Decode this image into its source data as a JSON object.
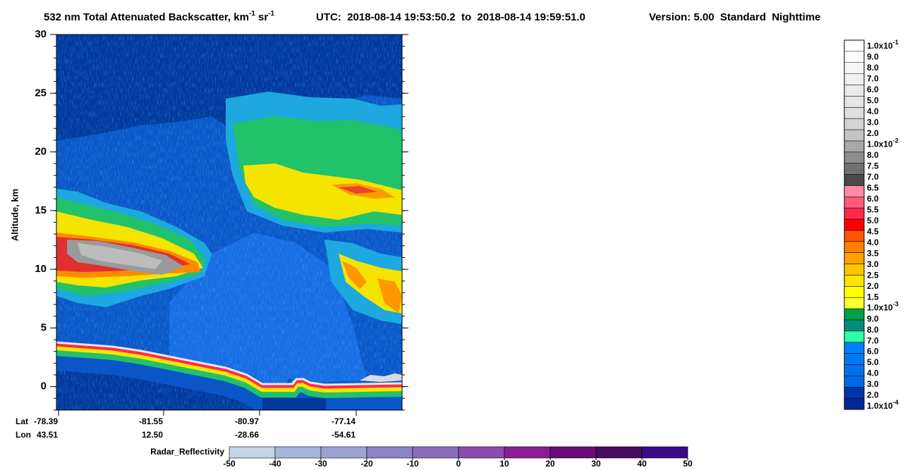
{
  "chart_data": {
    "type": "heatmap",
    "title_parts": [
      "532 nm Total Attenuated Backscatter, km",
      "-1",
      "sr",
      "-1"
    ],
    "utc": "UTC:  2018-08-14 19:53:50.2  to  2018-08-14 19:59:51.0",
    "version": "Version: 5.00  Standard  Nighttime",
    "ylabel": "Altitude, km",
    "ylim": [
      -2,
      30
    ],
    "yticks": [
      0,
      5,
      10,
      15,
      20,
      25,
      30
    ],
    "x_row_labels": [
      "Lat",
      "Lon"
    ],
    "lat": [
      "-78.39",
      "-81.55",
      "-80.97",
      "-77.14"
    ],
    "lon": [
      "43.51",
      "12.50",
      "-28.66",
      "-54.61"
    ],
    "colorbar": {
      "labels": [
        {
          "text": "1.0x10",
          "sup": "-1"
        },
        "9.0",
        "8.0",
        "7.0",
        "6.0",
        "5.0",
        "4.0",
        "3.0",
        "2.0",
        {
          "text": "1.0x10",
          "sup": "-2"
        },
        "8.0",
        "7.5",
        "7.0",
        "6.5",
        "6.0",
        "5.5",
        "5.0",
        "4.5",
        "4.0",
        "3.5",
        "3.0",
        "2.5",
        "2.0",
        "1.5",
        {
          "text": "1.0x10",
          "sup": "-3"
        },
        "9.0",
        "8.0",
        "7.0",
        "6.0",
        "5.0",
        "4.0",
        "3.0",
        "2.0",
        {
          "text": "1.0x10",
          "sup": "-4"
        }
      ],
      "colors": [
        "#ffffff",
        "#fbfbfb",
        "#f6f6f6",
        "#f1f1f1",
        "#ebebeb",
        "#e5e5e5",
        "#dedede",
        "#d4d4d4",
        "#c4c4c4",
        "#a8a8a8",
        "#8e8e8e",
        "#707070",
        "#4a4a4a",
        "#ff8aa8",
        "#ff5c7c",
        "#ff2a4a",
        "#ff0000",
        "#ff5500",
        "#ff7f00",
        "#ffa200",
        "#ffc400",
        "#ffe400",
        "#ffff00",
        "#ffff30",
        "#00a04a",
        "#008c78",
        "#2cffaa",
        "#0080ff",
        "#0078f4",
        "#0070ec",
        "#0068e2",
        "#0036a8",
        "#00269a"
      ]
    },
    "radar_colorbar": {
      "label": "Radar_Reflectivity",
      "ticks": [
        -50,
        -40,
        -30,
        -20,
        -10,
        0,
        10,
        20,
        30,
        40,
        50
      ],
      "colors": [
        "#c4d4e8",
        "#a4b8dc",
        "#9aa4d4",
        "#8c82c6",
        "#8a6cbc",
        "#8a4cae",
        "#8a1c96",
        "#6a0a7a",
        "#480a5e",
        "#3a0a8a"
      ]
    }
  }
}
